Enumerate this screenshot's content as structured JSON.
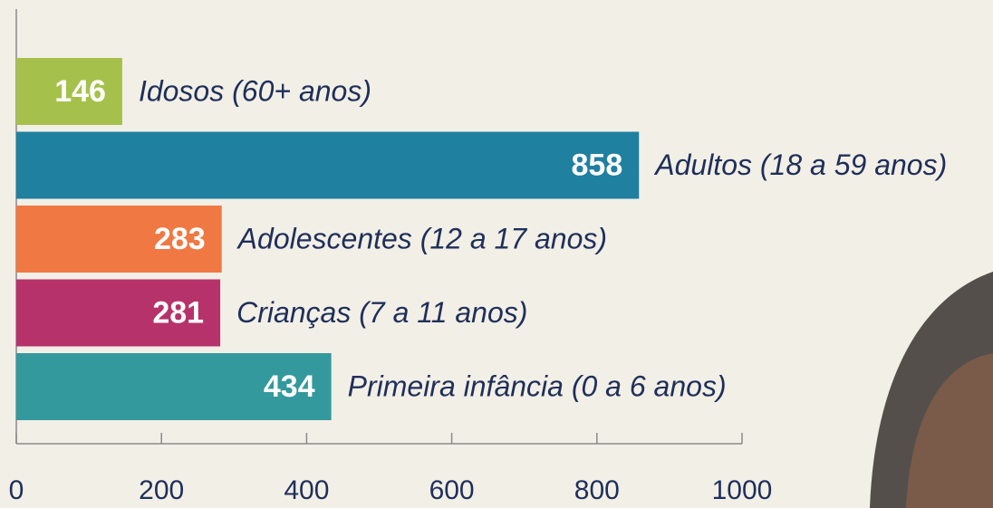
{
  "chart_data": {
    "type": "bar",
    "orientation": "horizontal",
    "categories": [
      "Idosos (60+ anos)",
      "Adultos (18 a 59 anos)",
      "Adolescentes (12 a 17 anos)",
      "Crianças (7 a 11 anos)",
      "Primeira infância (0 a 6 anos)"
    ],
    "values": [
      146,
      858,
      283,
      281,
      434
    ],
    "colors": [
      "#a6c14b",
      "#1f80a0",
      "#f07843",
      "#b5336a",
      "#33999c"
    ],
    "xlim": [
      0,
      1000
    ],
    "xticks": [
      0,
      200,
      400,
      600,
      800,
      1000
    ]
  }
}
